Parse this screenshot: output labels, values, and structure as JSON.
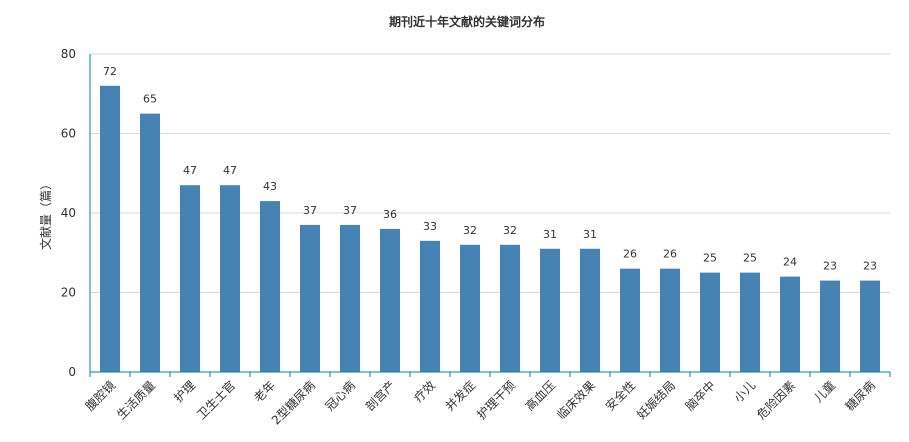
{
  "chart_data": {
    "type": "bar",
    "title": "期刊近十年文献的关键词分布",
    "ylabel": "文献量（篇）",
    "xlabel": "",
    "ylim": [
      0,
      80
    ],
    "yticks": [
      0,
      20,
      40,
      60,
      80
    ],
    "grid": true,
    "categories": [
      "腹腔镜",
      "生活质量",
      "护理",
      "卫生士官",
      "老年",
      "2型糖尿病",
      "冠心病",
      "剖宫产",
      "疗效",
      "并发症",
      "护理干预",
      "高血压",
      "临床效果",
      "安全性",
      "妊娠结局",
      "脑卒中",
      "小儿",
      "危险因素",
      "儿童",
      "糖尿病"
    ],
    "values": [
      72,
      65,
      47,
      47,
      43,
      37,
      37,
      36,
      33,
      32,
      32,
      31,
      31,
      26,
      26,
      25,
      25,
      24,
      23,
      23
    ],
    "colors": {
      "bar": "#4682b4",
      "axis": "#008b8b",
      "grid": "#d9d9d9",
      "text": "#333333"
    }
  }
}
